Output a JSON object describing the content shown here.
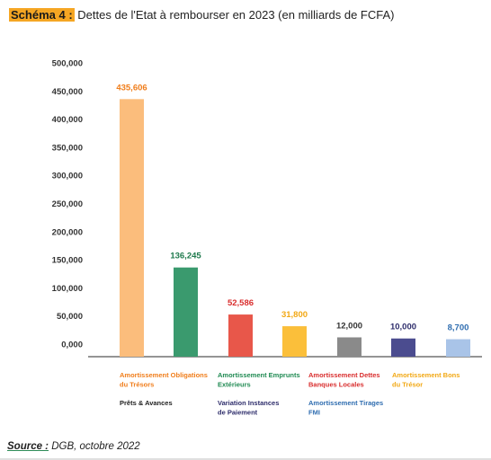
{
  "title": {
    "label": "Schéma 4 :",
    "text": "Dettes de l'Etat à rembourser en 2023 (en milliards de FCFA)"
  },
  "source": {
    "label": "Source :",
    "text": "DGB, octobre 2022"
  },
  "chart_data": {
    "type": "bar",
    "title": "Dettes de l'Etat à rembourser en 2023 (en milliards de FCFA)",
    "ylim": [
      0,
      500000
    ],
    "yticks": [
      "0,000",
      "50,000",
      "100,000",
      "150,000",
      "200,000",
      "250,000",
      "300,000",
      "350,000",
      "400,000",
      "450,000",
      "500,000"
    ],
    "grid": false,
    "values": [
      435606,
      136245,
      52586,
      31800,
      12000,
      10000,
      8700
    ],
    "value_labels": [
      "435,606",
      "136,245",
      "52,586",
      "31,800",
      "12,000",
      "10,000",
      "8,700"
    ],
    "colors": [
      "#fbbd7c",
      "#3a9a6e",
      "#e8574a",
      "#fbbf3a",
      "#8a8a8a",
      "#4b4c8f",
      "#a9c4e8"
    ],
    "label_colors": [
      "#f07d1a",
      "#1f7a4d",
      "#d92e2e",
      "#f2a814",
      "#333333",
      "#2e2d6b",
      "#2f6db0"
    ],
    "legend": [
      {
        "label": "Amortissement Obligations du Trésors",
        "color": "#f07d1a"
      },
      {
        "label": "Amortissement Emprunts Extérieurs",
        "color": "#1f8a52"
      },
      {
        "label": "Amortissement Dettes Banques Locales",
        "color": "#d92e2e"
      },
      {
        "label": "Amortissement Bons du Trésor",
        "color": "#f2a814"
      },
      {
        "label": "Prêts & Avances",
        "color": "#222222"
      },
      {
        "label": "Variation Instances de Paiement",
        "color": "#2e2d6b"
      },
      {
        "label": "Amortissement Tirages FMI",
        "color": "#2f6db0"
      }
    ]
  }
}
